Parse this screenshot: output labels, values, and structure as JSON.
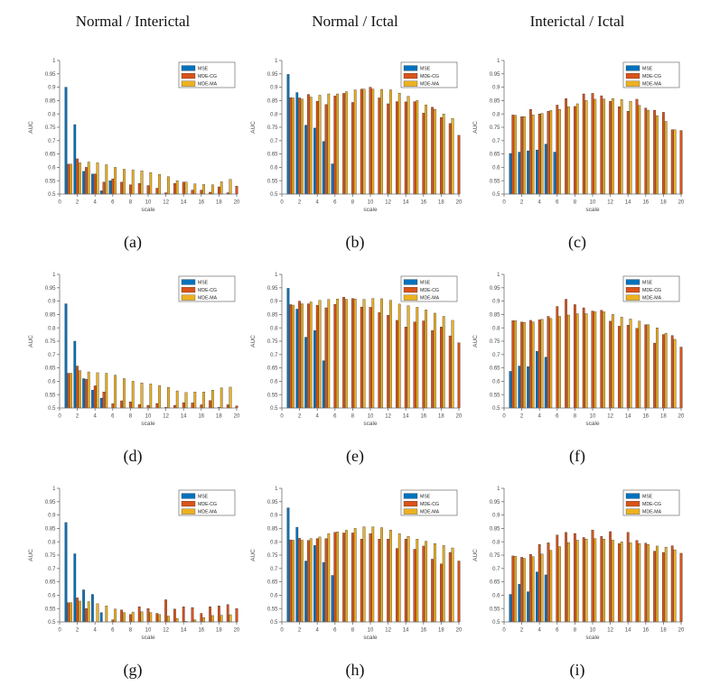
{
  "page": {
    "background": "#ffffff"
  },
  "columns": [
    "Normal / Interictal",
    "Normal / Ictal",
    "Interictal / Ictal"
  ],
  "chart_defaults": {
    "type": "bar",
    "xlabel": "scale",
    "ylabel": "AUC",
    "xlim": [
      0,
      20
    ],
    "ylim": [
      0.5,
      1
    ],
    "xticks": [
      0,
      2,
      4,
      6,
      8,
      10,
      12,
      14,
      16,
      18,
      20
    ],
    "yticks": [
      0.5,
      0.55,
      0.6,
      0.65,
      0.7,
      0.75,
      0.8,
      0.85,
      0.9,
      0.95,
      1
    ],
    "x_values": [
      1,
      2,
      3,
      4,
      5,
      6,
      7,
      8,
      9,
      10,
      11,
      12,
      13,
      14,
      15,
      16,
      17,
      18,
      19,
      20
    ],
    "grid": false,
    "axis_color": "#6f6f6f",
    "text_color": "#4a4a4a",
    "bar_edge_color": "#2b2b2b",
    "legend": {
      "position": "top-right",
      "entries": [
        {
          "label": "MSE",
          "color": "#0072BD"
        },
        {
          "label": "MDE-CG",
          "color": "#D95319"
        },
        {
          "label": "MDE-MA",
          "color": "#EDB120"
        }
      ]
    }
  },
  "chart_data": [
    {
      "id": "a",
      "label": "(a)",
      "title": "Normal / Interictal",
      "type": "bar",
      "series": [
        {
          "name": "MSE",
          "values": [
            0.9,
            0.76,
            0.585,
            0.575,
            0.512,
            0.55,
            null,
            null,
            null,
            null,
            null,
            null,
            null,
            null,
            null,
            null,
            null,
            null,
            null,
            null
          ]
        },
        {
          "name": "MDE-CG",
          "values": [
            0.612,
            0.632,
            0.6,
            0.575,
            0.545,
            0.557,
            0.545,
            0.535,
            0.54,
            0.532,
            0.522,
            0.505,
            0.54,
            0.545,
            0.515,
            0.515,
            0.507,
            0.527,
            0.505,
            0.53
          ]
        },
        {
          "name": "MDE-MA",
          "values": [
            0.612,
            0.617,
            0.62,
            0.617,
            0.61,
            0.6,
            0.593,
            0.59,
            0.587,
            0.58,
            0.574,
            0.565,
            0.55,
            0.545,
            0.538,
            0.536,
            0.535,
            0.546,
            0.555,
            null
          ]
        }
      ]
    },
    {
      "id": "b",
      "label": "(b)",
      "title": "Normal / Ictal",
      "type": "bar",
      "series": [
        {
          "name": "MSE",
          "values": [
            0.948,
            0.88,
            0.758,
            0.747,
            0.697,
            0.613,
            null,
            null,
            null,
            null,
            null,
            null,
            null,
            null,
            null,
            null,
            null,
            null,
            null,
            null
          ]
        },
        {
          "name": "MDE-CG",
          "values": [
            0.861,
            0.86,
            0.873,
            0.847,
            0.835,
            0.867,
            0.877,
            0.843,
            0.893,
            0.9,
            0.86,
            0.838,
            0.846,
            0.845,
            0.846,
            0.803,
            0.825,
            0.787,
            0.764,
            0.72
          ]
        },
        {
          "name": "MDE-MA",
          "values": [
            0.86,
            0.856,
            0.863,
            0.87,
            0.875,
            0.875,
            0.883,
            0.89,
            0.893,
            0.893,
            0.892,
            0.89,
            0.878,
            0.866,
            0.85,
            0.834,
            0.817,
            0.8,
            0.783,
            null
          ]
        }
      ]
    },
    {
      "id": "c",
      "label": "(c)",
      "title": "Interictal / Ictal",
      "type": "bar",
      "series": [
        {
          "name": "MSE",
          "values": [
            0.652,
            0.657,
            0.662,
            0.665,
            0.687,
            0.657,
            null,
            null,
            null,
            null,
            null,
            null,
            null,
            null,
            null,
            null,
            null,
            null,
            null,
            null
          ]
        },
        {
          "name": "MDE-CG",
          "values": [
            0.796,
            0.79,
            0.817,
            0.8,
            0.81,
            0.833,
            0.857,
            0.828,
            0.875,
            0.877,
            0.868,
            0.847,
            0.827,
            0.81,
            0.855,
            0.822,
            0.814,
            0.806,
            0.741,
            0.738
          ]
        },
        {
          "name": "MDE-MA",
          "values": [
            0.795,
            0.79,
            0.796,
            0.802,
            0.813,
            0.817,
            0.827,
            0.838,
            0.85,
            0.855,
            0.856,
            0.857,
            0.854,
            0.847,
            0.832,
            0.814,
            0.793,
            0.772,
            0.741,
            null
          ]
        }
      ]
    },
    {
      "id": "d",
      "label": "(d)",
      "title": "Normal / Interictal",
      "type": "bar",
      "series": [
        {
          "name": "MSE",
          "values": [
            0.89,
            0.75,
            0.61,
            0.567,
            0.537,
            null,
            null,
            null,
            null,
            null,
            null,
            null,
            null,
            null,
            null,
            null,
            null,
            null,
            null,
            null
          ]
        },
        {
          "name": "MDE-CG",
          "values": [
            0.63,
            0.657,
            0.608,
            0.583,
            0.56,
            0.516,
            0.527,
            0.523,
            0.513,
            0.51,
            0.517,
            0.503,
            0.51,
            0.52,
            0.519,
            0.512,
            0.528,
            0.503,
            0.512,
            0.508
          ]
        },
        {
          "name": "MDE-MA",
          "values": [
            0.63,
            0.64,
            0.635,
            0.632,
            0.63,
            0.623,
            0.61,
            0.6,
            0.594,
            0.59,
            0.584,
            0.577,
            0.564,
            0.558,
            0.56,
            0.56,
            0.567,
            0.575,
            0.578,
            null
          ]
        }
      ]
    },
    {
      "id": "e",
      "label": "(e)",
      "title": "Normal / Ictal",
      "type": "bar",
      "series": [
        {
          "name": "MSE",
          "values": [
            0.948,
            0.87,
            0.765,
            0.79,
            0.677,
            null,
            null,
            null,
            null,
            null,
            null,
            null,
            null,
            null,
            null,
            null,
            null,
            null,
            null,
            null
          ]
        },
        {
          "name": "MDE-CG",
          "values": [
            0.887,
            0.9,
            0.89,
            0.884,
            0.875,
            0.888,
            0.915,
            0.91,
            0.878,
            0.877,
            0.857,
            0.847,
            0.828,
            0.803,
            0.822,
            0.826,
            0.79,
            0.803,
            0.77,
            0.744
          ]
        },
        {
          "name": "MDE-MA",
          "values": [
            0.885,
            0.89,
            0.897,
            0.903,
            0.906,
            0.908,
            0.907,
            0.908,
            0.906,
            0.91,
            0.909,
            0.903,
            0.889,
            0.883,
            0.877,
            0.867,
            0.855,
            0.843,
            0.828,
            null
          ]
        }
      ]
    },
    {
      "id": "f",
      "label": "(f)",
      "title": "Interictal / Ictal",
      "type": "bar",
      "series": [
        {
          "name": "MSE",
          "values": [
            0.637,
            0.657,
            0.655,
            0.712,
            0.69,
            null,
            null,
            null,
            null,
            null,
            null,
            null,
            null,
            null,
            null,
            null,
            null,
            null,
            null,
            null
          ]
        },
        {
          "name": "MDE-CG",
          "values": [
            0.827,
            0.822,
            0.828,
            0.83,
            0.843,
            0.88,
            0.907,
            0.887,
            0.875,
            0.863,
            0.866,
            0.825,
            0.806,
            0.81,
            0.798,
            0.812,
            0.743,
            0.775,
            0.771,
            0.728
          ]
        },
        {
          "name": "MDE-MA",
          "values": [
            0.827,
            0.82,
            0.822,
            0.832,
            0.835,
            0.843,
            0.848,
            0.853,
            0.853,
            0.86,
            0.86,
            0.85,
            0.84,
            0.833,
            0.825,
            0.812,
            0.8,
            0.78,
            0.757,
            null
          ]
        }
      ]
    },
    {
      "id": "g",
      "label": "(g)",
      "title": "Normal / Interictal",
      "type": "bar",
      "series": [
        {
          "name": "MSE",
          "values": [
            0.872,
            0.755,
            0.62,
            0.603,
            0.535,
            null,
            null,
            null,
            null,
            null,
            null,
            null,
            null,
            null,
            null,
            null,
            null,
            null,
            null,
            null
          ]
        },
        {
          "name": "MDE-CG",
          "values": [
            0.572,
            0.59,
            0.55,
            null,
            null,
            0.508,
            0.545,
            0.528,
            0.557,
            0.55,
            0.532,
            0.583,
            0.548,
            0.557,
            0.554,
            0.532,
            0.557,
            0.56,
            0.565,
            0.55
          ]
        },
        {
          "name": "MDE-MA",
          "values": [
            0.572,
            0.578,
            0.576,
            0.568,
            0.56,
            0.548,
            0.535,
            0.537,
            0.538,
            0.535,
            0.528,
            0.522,
            0.513,
            0.502,
            0.508,
            0.516,
            0.524,
            0.525,
            0.527,
            null
          ]
        }
      ]
    },
    {
      "id": "h",
      "label": "(h)",
      "title": "Normal / Ictal",
      "type": "bar",
      "series": [
        {
          "name": "MSE",
          "values": [
            0.927,
            0.854,
            0.728,
            0.786,
            0.722,
            0.674,
            null,
            null,
            null,
            null,
            null,
            null,
            null,
            null,
            null,
            null,
            null,
            null,
            null,
            null
          ]
        },
        {
          "name": "MDE-CG",
          "values": [
            0.807,
            0.813,
            0.805,
            0.812,
            0.812,
            0.835,
            0.833,
            0.833,
            0.81,
            0.83,
            0.81,
            0.81,
            0.775,
            0.81,
            0.772,
            0.784,
            0.735,
            0.717,
            0.76,
            0.728
          ]
        },
        {
          "name": "MDE-MA",
          "values": [
            0.806,
            0.806,
            0.812,
            0.818,
            0.83,
            0.837,
            0.843,
            0.85,
            0.856,
            0.856,
            0.853,
            0.844,
            0.83,
            0.82,
            0.81,
            0.802,
            0.793,
            0.786,
            0.777,
            null
          ]
        }
      ]
    },
    {
      "id": "i",
      "label": "(i)",
      "title": "Interictal / Ictal",
      "type": "bar",
      "series": [
        {
          "name": "MSE",
          "values": [
            0.603,
            0.641,
            0.613,
            0.687,
            0.676,
            null,
            null,
            null,
            null,
            null,
            null,
            null,
            null,
            null,
            null,
            null,
            null,
            null,
            null,
            null
          ]
        },
        {
          "name": "MDE-CG",
          "values": [
            0.747,
            0.742,
            0.753,
            0.79,
            0.796,
            0.825,
            0.835,
            0.831,
            0.816,
            0.844,
            0.82,
            0.838,
            0.793,
            0.835,
            0.805,
            0.795,
            0.765,
            0.76,
            0.785,
            0.757
          ]
        },
        {
          "name": "MDE-MA",
          "values": [
            0.746,
            0.738,
            0.744,
            0.754,
            0.768,
            0.782,
            0.797,
            0.806,
            0.81,
            0.812,
            0.81,
            0.806,
            0.8,
            0.796,
            0.793,
            0.79,
            0.784,
            0.78,
            0.77,
            null
          ]
        }
      ]
    }
  ]
}
